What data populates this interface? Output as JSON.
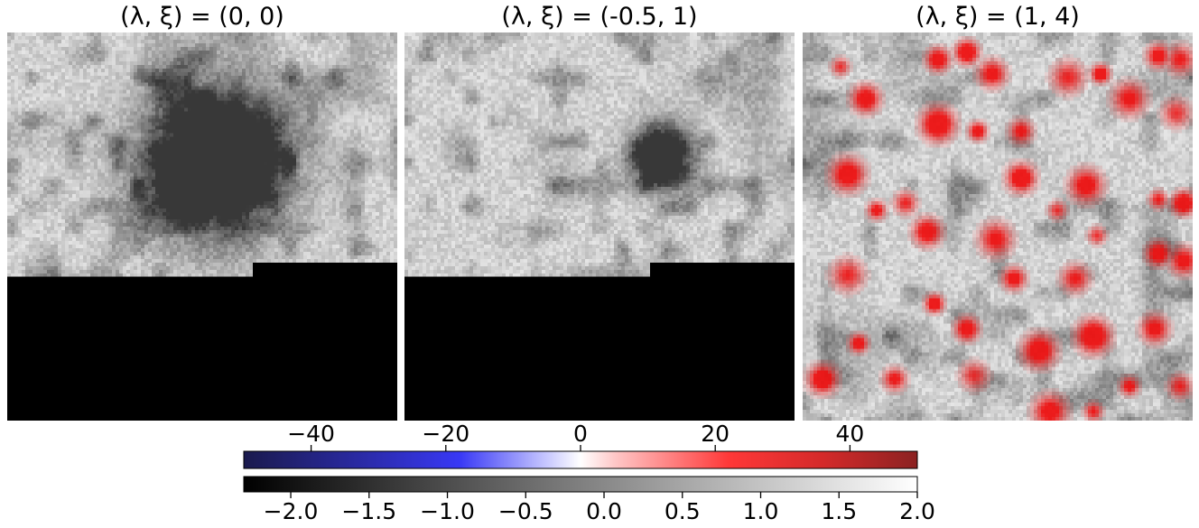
{
  "chart_data": {
    "type": "heatmap",
    "panels": [
      {
        "title_params": "(λ, ξ)",
        "title_eq": " = ",
        "title_values": "(0, 0)",
        "lambda": 0,
        "xi": 0,
        "red_blobs": false
      },
      {
        "title_params": "(λ, ξ)",
        "title_eq": " = ",
        "title_values": "(-0.5, 1)",
        "lambda": -0.5,
        "xi": 1,
        "red_blobs": false
      },
      {
        "title_params": "(λ, ξ)",
        "title_eq": " = ",
        "title_values": "(1, 4)",
        "lambda": 1,
        "xi": 4,
        "red_blobs": true
      }
    ],
    "colorbars": [
      {
        "name": "diverging",
        "colormap": "seismic",
        "range": [
          -50,
          50
        ],
        "ticks": [
          -40,
          -20,
          0,
          20,
          40
        ],
        "tick_labels": [
          "−40",
          "−20",
          "0",
          "20",
          "40"
        ],
        "tick_position": "top",
        "colors": [
          "#1a1a4d",
          "#3333ff",
          "#ffffff",
          "#ff3333",
          "#8b2222"
        ]
      },
      {
        "name": "grayscale",
        "colormap": "gray",
        "range": [
          -2.3,
          2.0
        ],
        "ticks": [
          -2.0,
          -1.5,
          -1.0,
          -0.5,
          0.0,
          0.5,
          1.0,
          1.5,
          2.0
        ],
        "tick_labels": [
          "−2.0",
          "−1.5",
          "−1.0",
          "−0.5",
          "0.0",
          "0.5",
          "1.0",
          "1.5",
          "2.0"
        ],
        "tick_position": "bottom",
        "colors": [
          "#000000",
          "#ffffff"
        ]
      }
    ]
  }
}
